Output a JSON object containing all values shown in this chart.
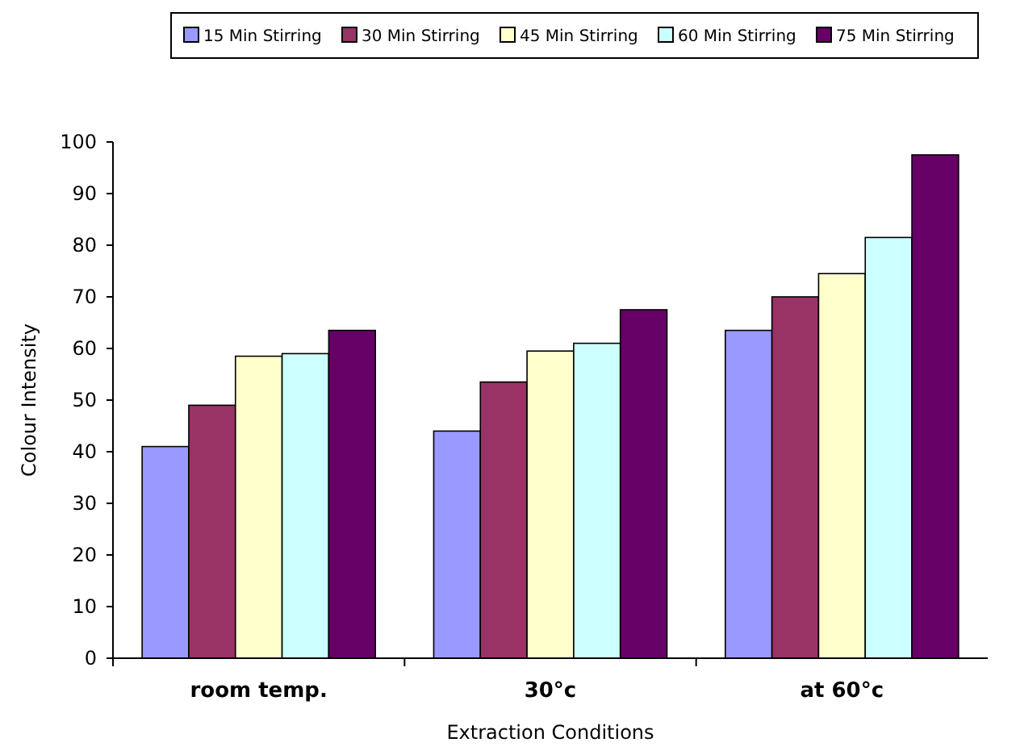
{
  "chart_data": {
    "type": "bar",
    "xlabel": "Extraction Conditions",
    "ylabel": "Colour Intensity",
    "categories": [
      "room temp.",
      "30°c",
      "at 60°c"
    ],
    "series": [
      {
        "name": "15 Min Stirring",
        "color": "#9999ff",
        "values": [
          41,
          44,
          63.5
        ]
      },
      {
        "name": "30 Min Stirring",
        "color": "#993366",
        "values": [
          49,
          53.5,
          70
        ]
      },
      {
        "name": "45 Min Stirring",
        "color": "#ffffcc",
        "values": [
          58.5,
          59.5,
          74.5
        ]
      },
      {
        "name": "60 Min Stirring",
        "color": "#ccffff",
        "values": [
          59,
          61,
          81.5
        ]
      },
      {
        "name": "75 Min Stirring",
        "color": "#660066",
        "values": [
          63.5,
          67.5,
          97.5
        ]
      }
    ],
    "ylim": [
      0,
      100
    ],
    "yticks": [
      0,
      10,
      20,
      30,
      40,
      50,
      60,
      70,
      80,
      90,
      100
    ],
    "grid": false,
    "legend": "top"
  }
}
